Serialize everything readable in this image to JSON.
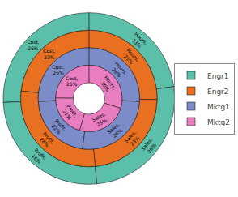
{
  "chart_data": {
    "type": "pie",
    "categories": [
      "Hours",
      "Cost",
      "Profit",
      "Sales"
    ],
    "series": [
      {
        "name": "Engr1",
        "color": "#5CBFAA",
        "values": [
          23,
          26,
          26,
          26
        ],
        "value_labels": [
          "Hours,\n23%",
          "Cost,\n26%",
          "Profit,\n26%",
          "Sales,\n26%"
        ]
      },
      {
        "name": "Engr2",
        "color": "#E87020",
        "values": [
          25,
          23,
          28,
          23
        ],
        "value_labels": [
          "Hours,\n25%",
          "Cost,\n23%",
          "Profit,\n28%",
          "Sales,\n23%"
        ]
      },
      {
        "name": "Mktg1",
        "color": "#7B8CC9",
        "values": [
          26,
          26,
          22,
          26
        ],
        "value_labels": [
          "Hours,\n26%",
          "Cost,\n26%",
          "Profit,\n22%",
          "Sales,\n26%"
        ]
      },
      {
        "name": "Mktg2",
        "color": "#E87DC0",
        "values": [
          30,
          25,
          21,
          25
        ],
        "value_labels": [
          "Hours,\n30%",
          "Cost,\n25%",
          "Profit,\n21%",
          "Sales,\n25%"
        ]
      }
    ],
    "data_labels": true,
    "legend": "right"
  }
}
